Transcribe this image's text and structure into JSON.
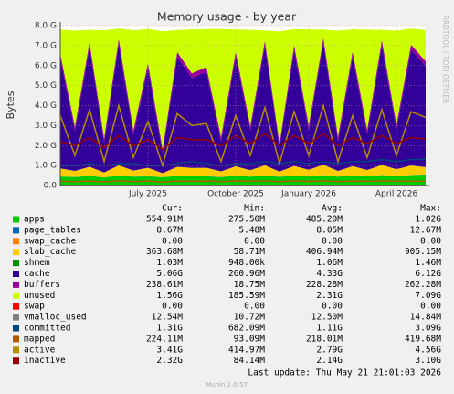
{
  "chart_data": {
    "type": "area",
    "title": "Memory usage - by year",
    "y_label": "Bytes",
    "side_text": "RRDTOOL / TOBI OETIKER",
    "categories": [
      null,
      null,
      null,
      null,
      null,
      null,
      "July 2025",
      null,
      null,
      null,
      null,
      null,
      "October 2025",
      null,
      null,
      null,
      null,
      "January 2026",
      null,
      null,
      null,
      null,
      null,
      "April 2026",
      null,
      null
    ],
    "ylim": [
      0,
      8
    ],
    "yticks": [
      {
        "value": 0,
        "label": "0.0"
      },
      {
        "value": 1,
        "label": "1.0 G"
      },
      {
        "value": 2,
        "label": "2.0 G"
      },
      {
        "value": 3,
        "label": "3.0 G"
      },
      {
        "value": 4,
        "label": "4.0 G"
      },
      {
        "value": 5,
        "label": "5.0 G"
      },
      {
        "value": 6,
        "label": "6.0 G"
      },
      {
        "value": 7,
        "label": "7.0 G"
      },
      {
        "value": 8,
        "label": "8.0 G"
      }
    ],
    "grid": true,
    "columns": [
      "Cur:",
      "Min:",
      "Avg:",
      "Max:"
    ],
    "series": [
      {
        "name": "apps",
        "color": "#00cc00",
        "style": "area",
        "cur": "554.91M",
        "min": "275.50M",
        "avg": "485.20M",
        "max": "1.02G",
        "values": [
          0.45,
          0.42,
          0.48,
          0.4,
          0.5,
          0.44,
          0.46,
          0.41,
          0.48,
          0.47,
          0.46,
          0.42,
          0.49,
          0.44,
          0.5,
          0.43,
          0.49,
          0.45,
          0.51,
          0.44,
          0.5,
          0.46,
          0.52,
          0.47,
          0.52,
          0.55
        ]
      },
      {
        "name": "page_tables",
        "color": "#0066b3",
        "style": "area",
        "cur": "8.67M",
        "min": "5.48M",
        "avg": "8.05M",
        "max": "12.67M",
        "values": [
          0.008,
          0.008,
          0.008,
          0.008,
          0.008,
          0.008,
          0.008,
          0.008,
          0.008,
          0.008,
          0.008,
          0.008,
          0.008,
          0.008,
          0.008,
          0.008,
          0.008,
          0.008,
          0.008,
          0.008,
          0.008,
          0.008,
          0.008,
          0.008,
          0.008,
          0.008
        ]
      },
      {
        "name": "swap_cache",
        "color": "#ff8000",
        "style": "area",
        "cur": "0.00",
        "min": "0.00",
        "avg": "0.00",
        "max": "0.00",
        "values": [
          0,
          0,
          0,
          0,
          0,
          0,
          0,
          0,
          0,
          0,
          0,
          0,
          0,
          0,
          0,
          0,
          0,
          0,
          0,
          0,
          0,
          0,
          0,
          0,
          0,
          0
        ]
      },
      {
        "name": "slab_cache",
        "color": "#ffcc00",
        "style": "area",
        "cur": "363.68M",
        "min": "58.71M",
        "avg": "406.94M",
        "max": "905.15M",
        "values": [
          0.4,
          0.3,
          0.45,
          0.25,
          0.5,
          0.3,
          0.42,
          0.2,
          0.45,
          0.4,
          0.42,
          0.28,
          0.46,
          0.32,
          0.5,
          0.26,
          0.48,
          0.33,
          0.52,
          0.28,
          0.46,
          0.31,
          0.5,
          0.34,
          0.47,
          0.36
        ]
      },
      {
        "name": "shmem",
        "color": "#008f00",
        "style": "area",
        "cur": "1.03M",
        "min": "948.00k",
        "avg": "1.06M",
        "max": "1.46M",
        "values": [
          0.001,
          0.001,
          0.001,
          0.001,
          0.001,
          0.001,
          0.001,
          0.001,
          0.001,
          0.001,
          0.001,
          0.001,
          0.001,
          0.001,
          0.001,
          0.001,
          0.001,
          0.001,
          0.001,
          0.001,
          0.001,
          0.001,
          0.001,
          0.001,
          0.001,
          0.001
        ]
      },
      {
        "name": "cache",
        "color": "#330099",
        "style": "area",
        "cur": "5.06G",
        "min": "260.96M",
        "avg": "4.33G",
        "max": "6.12G",
        "values": [
          5.5,
          2.0,
          6.0,
          1.5,
          6.1,
          1.8,
          5.0,
          1.0,
          5.5,
          4.5,
          4.8,
          1.5,
          5.5,
          2.0,
          6.0,
          1.2,
          5.8,
          2.0,
          6.1,
          1.5,
          5.5,
          1.8,
          6.0,
          2.0,
          5.8,
          5.06
        ]
      },
      {
        "name": "buffers",
        "color": "#990099",
        "style": "area",
        "cur": "238.61M",
        "min": "18.75M",
        "avg": "228.28M",
        "max": "262.28M",
        "values": [
          0.24,
          0.22,
          0.25,
          0.21,
          0.25,
          0.22,
          0.24,
          0.2,
          0.24,
          0.23,
          0.24,
          0.22,
          0.25,
          0.22,
          0.25,
          0.21,
          0.25,
          0.22,
          0.26,
          0.22,
          0.25,
          0.22,
          0.26,
          0.23,
          0.25,
          0.24
        ]
      },
      {
        "name": "unused",
        "color": "#ccff00",
        "style": "area",
        "cur": "1.56G",
        "min": "185.59M",
        "avg": "2.31G",
        "max": "7.09G",
        "values": [
          1.2,
          4.8,
          0.6,
          5.4,
          0.5,
          5.0,
          1.7,
          5.9,
          1.1,
          2.2,
          1.9,
          5.4,
          1.1,
          4.8,
          0.5,
          5.6,
          0.8,
          4.8,
          0.4,
          5.3,
          1.1,
          5.0,
          0.5,
          4.7,
          0.8,
          1.56
        ]
      },
      {
        "name": "swap",
        "color": "#ff0000",
        "style": "line",
        "cur": "0.00",
        "min": "0.00",
        "avg": "0.00",
        "max": "0.00",
        "values": [
          0,
          0,
          0,
          0,
          0,
          0,
          0,
          0,
          0,
          0,
          0,
          0,
          0,
          0,
          0,
          0,
          0,
          0,
          0,
          0,
          0,
          0,
          0,
          0,
          0,
          0
        ]
      },
      {
        "name": "vmalloc_used",
        "color": "#808080",
        "style": "line",
        "cur": "12.54M",
        "min": "10.72M",
        "avg": "12.50M",
        "max": "14.84M",
        "values": [
          0.012,
          0.012,
          0.012,
          0.012,
          0.012,
          0.012,
          0.012,
          0.012,
          0.012,
          0.012,
          0.012,
          0.012,
          0.012,
          0.012,
          0.012,
          0.012,
          0.012,
          0.012,
          0.012,
          0.012,
          0.012,
          0.012,
          0.012,
          0.012,
          0.012,
          0.012
        ]
      },
      {
        "name": "committed",
        "color": "#00487d",
        "style": "line",
        "cur": "1.31G",
        "min": "682.09M",
        "avg": "1.11G",
        "max": "3.09G",
        "values": [
          1.0,
          1.0,
          1.1,
          1.0,
          1.1,
          1.1,
          1.0,
          1.0,
          1.1,
          1.2,
          1.1,
          1.0,
          1.1,
          1.1,
          1.2,
          1.1,
          1.2,
          1.1,
          1.2,
          1.1,
          1.2,
          1.2,
          1.3,
          1.2,
          1.3,
          1.31
        ]
      },
      {
        "name": "mapped",
        "color": "#b35a00",
        "style": "line",
        "cur": "224.11M",
        "min": "93.09M",
        "avg": "218.01M",
        "max": "419.68M",
        "values": [
          0.21,
          0.2,
          0.22,
          0.19,
          0.23,
          0.2,
          0.22,
          0.18,
          0.22,
          0.21,
          0.22,
          0.2,
          0.23,
          0.21,
          0.23,
          0.2,
          0.22,
          0.21,
          0.23,
          0.2,
          0.22,
          0.21,
          0.23,
          0.21,
          0.22,
          0.22
        ]
      },
      {
        "name": "active",
        "color": "#b38f00",
        "style": "line",
        "cur": "3.41G",
        "min": "414.97M",
        "avg": "2.79G",
        "max": "4.56G",
        "values": [
          3.5,
          1.5,
          3.8,
          1.2,
          4.0,
          1.4,
          3.2,
          1.0,
          3.6,
          3.0,
          3.1,
          1.2,
          3.5,
          1.5,
          3.9,
          1.1,
          3.7,
          1.5,
          4.0,
          1.2,
          3.5,
          1.4,
          3.8,
          1.5,
          3.7,
          3.41
        ]
      },
      {
        "name": "inactive",
        "color": "#990000",
        "style": "line",
        "cur": "2.32G",
        "min": "84.14M",
        "avg": "2.14G",
        "max": "3.10G",
        "values": [
          2.2,
          2.0,
          2.4,
          1.9,
          2.5,
          2.0,
          2.3,
          1.8,
          2.4,
          2.3,
          2.3,
          2.0,
          2.5,
          2.1,
          2.6,
          2.0,
          2.5,
          2.1,
          2.6,
          2.0,
          2.4,
          2.1,
          2.5,
          2.1,
          2.4,
          2.32
        ]
      }
    ],
    "last_update": "Last update: Thu May 21 21:01:03 2026",
    "footer": "Munin 2.0.57"
  }
}
